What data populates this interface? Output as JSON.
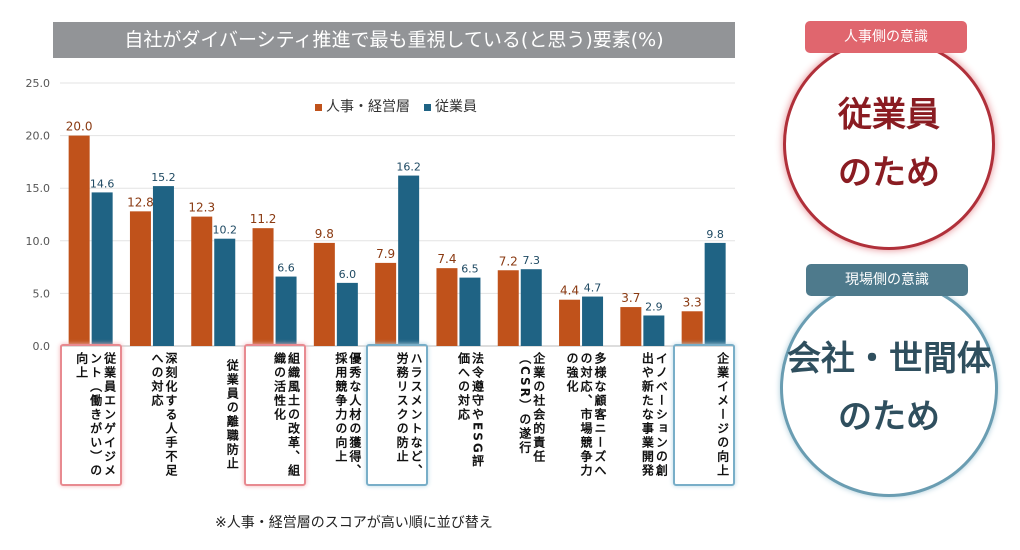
{
  "chart_data": {
    "type": "bar",
    "title": "自社がダイバーシティ推進で最も重視している(と思う)要素(%)",
    "categories": [
      "従業員エンゲイジメント（働きがい）の向上",
      "深刻化する人手不足への対応",
      "従業員の離職防止",
      "組織風土の改革、組織の活性化",
      "優秀な人材の獲得、採用競争力の向上",
      "ハラスメントなど、労務リスクの防止",
      "法令遵守やESG評価への対応",
      "企業の社会的責任（CSR）の遂行",
      "多様な顧客ニーズへの対応、市場競争力の強化",
      "イノベーションの創出や新たな事業開発",
      "企業イメージの向上"
    ],
    "series": [
      {
        "name": "人事・経営層",
        "color": "#c0521b",
        "values": [
          20.0,
          12.8,
          12.3,
          11.2,
          9.8,
          7.9,
          7.4,
          7.2,
          4.4,
          3.7,
          3.3
        ]
      },
      {
        "name": "従業員",
        "color": "#1f6384",
        "values": [
          14.6,
          15.2,
          10.2,
          6.6,
          6.0,
          16.2,
          6.5,
          7.3,
          4.7,
          2.9,
          9.8
        ]
      }
    ],
    "yticks": [
      "0.0",
      "5.0",
      "10.0",
      "15.0",
      "20.0",
      "25.0"
    ],
    "ylim": [
      0,
      25
    ],
    "grid": true,
    "legend": "top-center",
    "highlight_pink": [
      0,
      3
    ],
    "highlight_blue": [
      5,
      10
    ]
  },
  "note": "※人事・経営層のスコアが高い順に並び替え",
  "right": {
    "hr": {
      "badge": "人事側の意識",
      "line1": "従業員",
      "line2": "のため",
      "color": "#e0666e",
      "text_color": "#8a1c22"
    },
    "field": {
      "badge": "現場側の意識",
      "line1": "会社・世間体",
      "line2": "のため",
      "color": "#4e7a8c",
      "text_color": "#2f4f5e"
    }
  }
}
